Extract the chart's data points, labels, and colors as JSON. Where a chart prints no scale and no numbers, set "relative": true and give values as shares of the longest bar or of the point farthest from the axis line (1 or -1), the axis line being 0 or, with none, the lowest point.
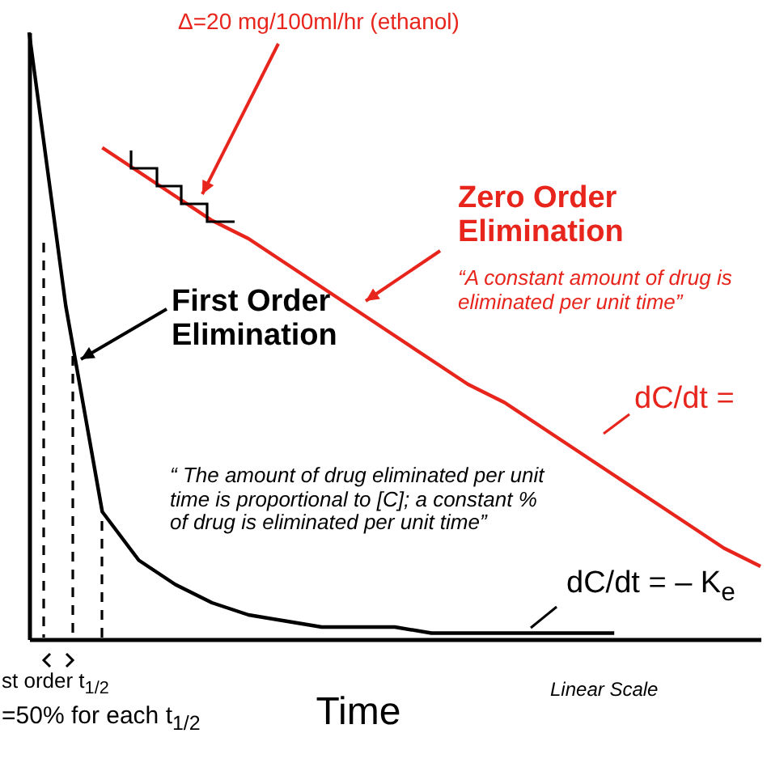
{
  "chart_data": {
    "type": "line",
    "relative": true,
    "xlabel": "Time",
    "categories": [
      null,
      null,
      null,
      null,
      null,
      null,
      null,
      null,
      null,
      null,
      null,
      null,
      null,
      null,
      null,
      null,
      null,
      null,
      null,
      null,
      null
    ],
    "series": [
      {
        "color": "#000000",
        "values": [
          1,
          0.55,
          0.21,
          0.13,
          0.09,
          0.06,
          0.04,
          0.03,
          0.02,
          0.02,
          0.02,
          0.01,
          0.01,
          0.01,
          0.01,
          0.01,
          0.01,
          null,
          null,
          null,
          null
        ]
      },
      {
        "color": "#e8251c",
        "values": [
          null,
          null,
          0.81,
          0.77,
          0.73,
          0.69,
          0.66,
          0.62,
          0.58,
          0.54,
          0.5,
          0.46,
          0.42,
          0.39,
          0.35,
          0.31,
          0.27,
          0.23,
          0.19,
          0.15,
          0.12
        ]
      }
    ],
    "grid": false,
    "marker": "none",
    "annotations": [
      "Δ=20 mg/100ml/hr (ethanol)",
      "Zero Order Elimination",
      "“A constant amount of drug is eliminated per unit time”",
      "dC/dt =",
      "First Order Elimination",
      "“ The amount of drug eliminated per unit time is proportional to [C]; a constant % of drug is eliminated per unit time”",
      "dC/dt = – K$_{e}$",
      "st order t$_{1/2}$",
      "=50% for each t$_{1/2}$",
      "Linear Scale"
    ]
  }
}
